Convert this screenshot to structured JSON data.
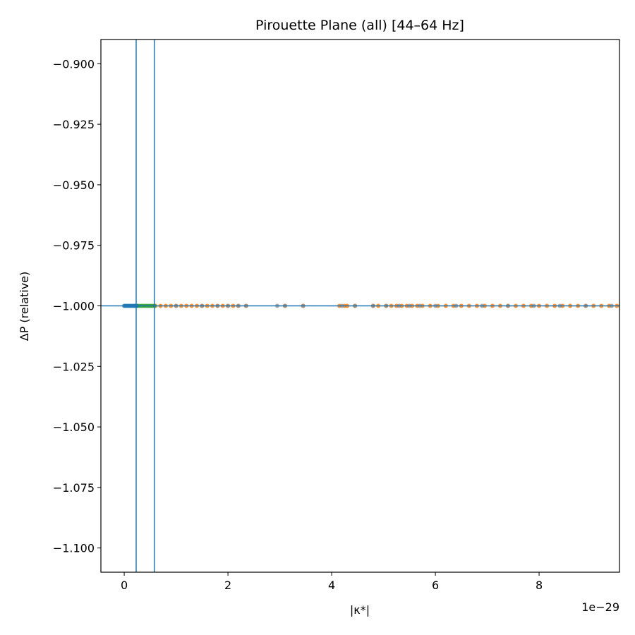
{
  "chart_data": {
    "type": "scatter",
    "title": "Pirouette Plane (all)  [44–64 Hz]",
    "xlabel": "|κ*|",
    "ylabel": "ΔP (relative)",
    "x_offset_label": "1e−29",
    "x_scale": 1e-29,
    "xlim": [
      -0.45,
      9.55
    ],
    "ylim": [
      -1.11,
      -0.89
    ],
    "x_ticks": [
      0,
      2,
      4,
      6,
      8
    ],
    "y_ticks": [
      -0.9,
      -0.925,
      -0.95,
      -0.975,
      -1.0,
      -1.025,
      -1.05,
      -1.075,
      -1.1
    ],
    "y_tick_labels": [
      "−0.900",
      "−0.925",
      "−0.950",
      "−0.975",
      "−1.000",
      "−1.025",
      "−1.050",
      "−1.075",
      "−1.100"
    ],
    "grid": false,
    "hlines": [
      -1.0
    ],
    "vlines": [
      0.23,
      0.58
    ],
    "line_color": "#1f77b4",
    "series": [
      {
        "color": "#ff7f0e",
        "y": -1.0,
        "x": [
          0.6,
          0.7,
          0.8,
          0.9,
          1.0,
          1.1,
          1.2,
          1.3,
          1.4,
          1.5,
          1.6,
          1.7,
          1.8,
          1.9,
          2.0,
          2.1,
          2.2,
          2.35,
          3.1,
          3.45,
          4.15,
          4.25,
          4.3,
          4.45,
          4.8,
          4.9,
          5.05,
          5.15,
          5.25,
          5.35,
          5.45,
          5.55,
          5.65,
          5.75,
          5.9,
          6.05,
          6.2,
          6.35,
          6.5,
          6.65,
          6.8,
          6.95,
          7.1,
          7.25,
          7.4,
          7.55,
          7.7,
          7.85,
          8.0,
          8.15,
          8.3,
          8.45,
          8.6,
          8.75,
          8.9,
          9.05,
          9.2,
          9.35,
          9.5
        ]
      },
      {
        "color": "#8c8c8c",
        "y": -1.0,
        "x": [
          1.0,
          1.5,
          1.8,
          2.0,
          2.2,
          2.35,
          2.95,
          3.1,
          3.45,
          4.2,
          4.45,
          4.8,
          5.05,
          5.3,
          5.5,
          5.7,
          6.0,
          6.4,
          6.9,
          7.4,
          7.9,
          8.4,
          8.9,
          9.4
        ]
      },
      {
        "color": "#2ca02c",
        "y": -1.0,
        "x": [
          0.22,
          0.26,
          0.3,
          0.34,
          0.38,
          0.42,
          0.46,
          0.5,
          0.54,
          0.58
        ]
      },
      {
        "color": "#1f77b4",
        "y": -1.0,
        "x": [
          0.0,
          0.03,
          0.06,
          0.09,
          0.12,
          0.15,
          0.18,
          0.21,
          0.24
        ]
      }
    ]
  }
}
